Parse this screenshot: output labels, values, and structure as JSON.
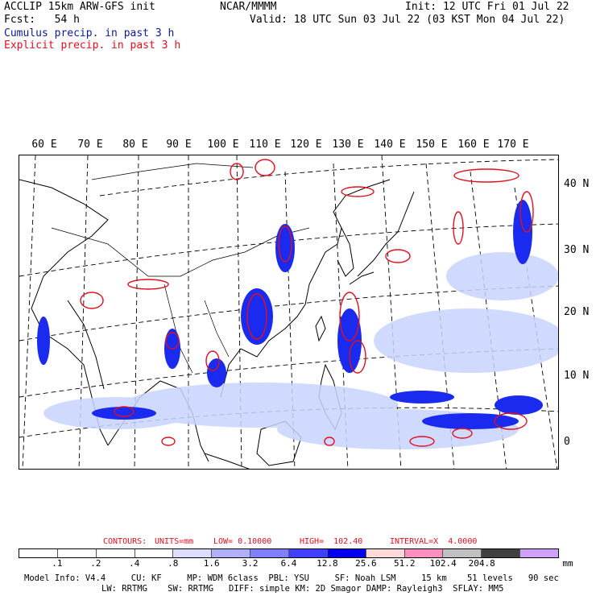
{
  "header": {
    "line1_left": "ACCLIP 15km ARW-GFS init",
    "line1_center": "NCAR/MMMM",
    "line1_right": "Init: 12 UTC Fri 01 Jul 22",
    "line2_left": "Fcst:   54 h",
    "line2_right": "Valid: 18 UTC Sun 03 Jul 22 (03 KST Mon 04 Jul 22)",
    "cumulus_label": "Cumulus precip. in past 3 h",
    "explicit_label": "Explicit precip. in past 3 h"
  },
  "map": {
    "lon_labels": [
      "60 E",
      "70 E",
      "80 E",
      "90 E",
      "100 E",
      "110 E",
      "120 E",
      "130 E",
      "140 E",
      "150 E",
      "160 E",
      "170 E"
    ],
    "lat_labels": [
      "40 N",
      "30 N",
      "20 N",
      "10 N",
      "0"
    ],
    "colors": {
      "cumulus": "#1a2aee",
      "explicit": "#e01020",
      "light": "#c8d4ff",
      "coast": "#000000",
      "grid": "#000000"
    }
  },
  "contours": {
    "label": "CONTOURS:",
    "units": "UNITS=mm",
    "low": "LOW= 0.10000",
    "high": "HIGH=  102.40",
    "interval": "INTERVAL=X  4.0000"
  },
  "colorbar": {
    "colors": [
      "#ffffff",
      "#ffffff",
      "#ffffff",
      "#ffffff",
      "#ddddff",
      "#b0b0ff",
      "#8080ff",
      "#4040ff",
      "#0000ee",
      "#ffd8d8",
      "#ff90c0",
      "#c0c0c0",
      "#404040",
      "#d0a0ff"
    ],
    "labels": [
      ".1",
      ".2",
      ".4",
      ".8",
      "1.6",
      "3.2",
      "6.4",
      "12.8",
      "25.6",
      "51.2",
      "102.4",
      "204.8"
    ],
    "unit": "mm"
  },
  "footer": {
    "line1": "Model Info: V4.4     CU: KF     MP: WDM 6class  PBL: YSU     SF: Noah LSM     15 km    51 levels   90 sec",
    "line2": "LW: RRTMG    SW: RRTMG   DIFF: simple KM: 2D Smagor DAMP: Rayleigh3  SFLAY: MM5"
  }
}
